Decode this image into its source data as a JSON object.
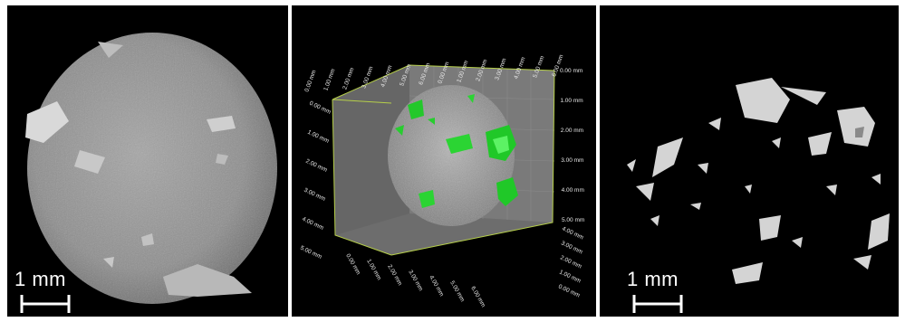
{
  "left_panel": {
    "scale_label": "1 mm"
  },
  "middle_panel": {
    "top_axis_labels": [
      "0.00 mm",
      "1.00 mm",
      "2.00 mm",
      "3.00 mm",
      "4.00 mm",
      "5.00 mm",
      "6.00 mm",
      "0.00 mm",
      "1.00 mm",
      "2.00 mm",
      "3.00 mm",
      "4.00 mm",
      "5.00 mm",
      "6.00 mm"
    ],
    "right_axis_labels": [
      "0.00 mm",
      "1.00 mm",
      "2.00 mm",
      "3.00 mm",
      "4.00 mm",
      "5.00 mm"
    ],
    "left_axis_labels": [
      "0.00 mm",
      "1.00 mm",
      "2.00 mm",
      "3.00 mm",
      "4.00 mm",
      "5.00 mm"
    ],
    "bottom_axis_labels": [
      "0.00 mm",
      "1.00 mm",
      "2.00 mm",
      "3.00 mm",
      "4.00 mm",
      "5.00 mm",
      "6.00 mm"
    ],
    "bottom_right_labels": [
      "4.00 mm",
      "3.00 mm",
      "2.00 mm",
      "1.00 mm",
      "0.00 mm"
    ],
    "highlight_color": "#22d12a",
    "box_edge_color": "#b6cf4a"
  },
  "right_panel": {
    "scale_label": "1 mm"
  }
}
